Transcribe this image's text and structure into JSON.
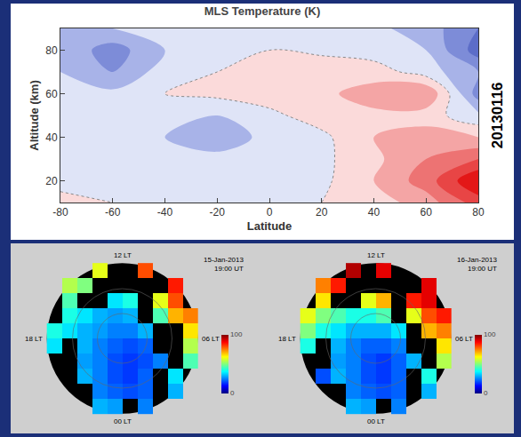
{
  "chart_data": [
    {
      "type": "contour",
      "title": "MLS Temperature (K)",
      "x_label": "Latitude",
      "y_label": "Altitude (km)",
      "annotation": "20130116",
      "x": [
        -80,
        -60,
        -40,
        -20,
        0,
        20,
        40,
        60,
        80
      ],
      "y": [
        10,
        20,
        30,
        40,
        50,
        60,
        70,
        80,
        90
      ],
      "z": [
        [
          1,
          0,
          0,
          0,
          0,
          0,
          2,
          6,
          14
        ],
        [
          -1,
          -2,
          -1,
          0,
          0,
          -1,
          4,
          10,
          20
        ],
        [
          -1,
          -1,
          -2,
          -3,
          -2,
          -1,
          3,
          8,
          12
        ],
        [
          -1,
          -2,
          -4,
          -6,
          -3,
          -1,
          4,
          6,
          4
        ],
        [
          -2,
          -1,
          -2,
          -4,
          -1,
          2,
          3,
          2,
          -3
        ],
        [
          -3,
          -3,
          0,
          1,
          2,
          3,
          6,
          8,
          -10
        ],
        [
          -4,
          -8,
          -2,
          0,
          2,
          3,
          2,
          -2,
          -8
        ],
        [
          -5,
          -10,
          -4,
          -2,
          0,
          -1,
          -2,
          -4,
          -14
        ],
        [
          -4,
          -4,
          -3,
          -2,
          -2,
          -2,
          -3,
          -6,
          -12
        ]
      ],
      "zlim": [
        -20,
        20
      ],
      "xlim": [
        -80,
        80
      ],
      "ylim": [
        10,
        90
      ],
      "xticks": [
        -80,
        -60,
        -40,
        -20,
        0,
        20,
        40,
        60,
        80
      ],
      "yticks": [
        20,
        40,
        60,
        80
      ]
    },
    {
      "type": "heatmap",
      "date": "15-Jan-2013",
      "time": "19:00 UT",
      "labels": {
        "top": "12 LT",
        "left": "18 LT",
        "right": "06 LT",
        "bottom": "00 LT"
      },
      "x": [
        -0.9,
        -0.7,
        -0.5,
        -0.3,
        -0.1,
        0.1,
        0.3,
        0.5,
        0.7,
        0.9
      ],
      "y": [
        -0.9,
        -0.7,
        -0.5,
        -0.3,
        -0.1,
        0.1,
        0.3,
        0.5,
        0.7,
        0.9
      ],
      "z": [
        [
          null,
          null,
          null,
          30,
          28,
          null,
          25,
          null,
          null,
          null
        ],
        [
          null,
          null,
          null,
          25,
          22,
          20,
          22,
          null,
          30,
          null
        ],
        [
          null,
          null,
          30,
          25,
          20,
          18,
          22,
          null,
          35,
          null
        ],
        [
          null,
          null,
          28,
          25,
          20,
          18,
          20,
          25,
          null,
          45
        ],
        [
          35,
          null,
          30,
          25,
          22,
          20,
          22,
          null,
          null,
          55
        ],
        [
          40,
          35,
          30,
          28,
          25,
          25,
          30,
          null,
          null,
          65
        ],
        [
          null,
          40,
          35,
          30,
          28,
          30,
          null,
          45,
          70,
          75
        ],
        [
          null,
          45,
          null,
          null,
          35,
          40,
          null,
          60,
          80,
          null
        ],
        [
          null,
          55,
          50,
          null,
          null,
          null,
          null,
          null,
          85,
          null
        ],
        [
          null,
          null,
          null,
          60,
          null,
          null,
          80,
          null,
          null,
          null
        ]
      ],
      "zlim": [
        0,
        100
      ]
    },
    {
      "type": "heatmap",
      "date": "16-Jan-2013",
      "time": "19:00 UT",
      "labels": {
        "top": "12 LT",
        "left": "18 LT",
        "right": "06 LT",
        "bottom": "00 LT"
      },
      "x": [
        -0.9,
        -0.7,
        -0.5,
        -0.3,
        -0.1,
        0.1,
        0.3,
        0.5,
        0.7,
        0.9
      ],
      "y": [
        -0.9,
        -0.7,
        -0.5,
        -0.3,
        -0.1,
        0.1,
        0.3,
        0.5,
        0.7,
        0.9
      ],
      "z": [
        [
          null,
          null,
          null,
          30,
          28,
          null,
          25,
          null,
          null,
          null
        ],
        [
          null,
          null,
          null,
          25,
          22,
          20,
          22,
          null,
          30,
          null
        ],
        [
          null,
          20,
          30,
          25,
          20,
          18,
          22,
          null,
          40,
          null
        ],
        [
          null,
          null,
          28,
          25,
          20,
          18,
          22,
          30,
          null,
          55
        ],
        [
          40,
          null,
          30,
          25,
          22,
          22,
          25,
          null,
          null,
          65
        ],
        [
          50,
          40,
          35,
          30,
          30,
          30,
          35,
          null,
          70,
          75
        ],
        [
          60,
          50,
          45,
          40,
          40,
          45,
          null,
          60,
          80,
          85
        ],
        [
          null,
          65,
          null,
          null,
          60,
          70,
          null,
          85,
          90,
          null
        ],
        [
          null,
          75,
          85,
          null,
          null,
          null,
          null,
          null,
          90,
          null
        ],
        [
          null,
          null,
          null,
          95,
          null,
          90,
          null,
          null,
          null,
          null
        ]
      ],
      "zlim": [
        0,
        100
      ]
    }
  ]
}
